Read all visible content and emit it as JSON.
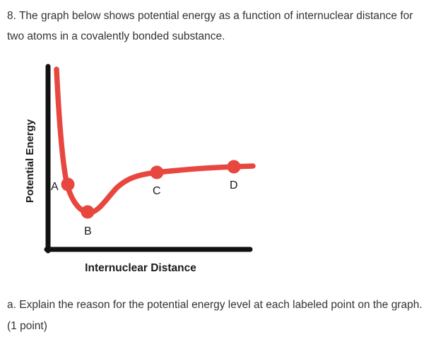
{
  "question": {
    "text": "8. The graph below shows potential energy as a function of internuclear distance for two atoms in a covalently bonded substance."
  },
  "diagram": {
    "y_axis_label": "Potential Energy",
    "x_axis_label": "Internuclear Distance",
    "curve_color": "#e8473f",
    "axis_color": "#111111",
    "points": [
      {
        "label": "A"
      },
      {
        "label": "B"
      },
      {
        "label": "C"
      },
      {
        "label": "D"
      }
    ]
  },
  "sub_question": {
    "text": "a. Explain the reason for the potential energy level at each labeled point on the graph. (1 point)"
  }
}
